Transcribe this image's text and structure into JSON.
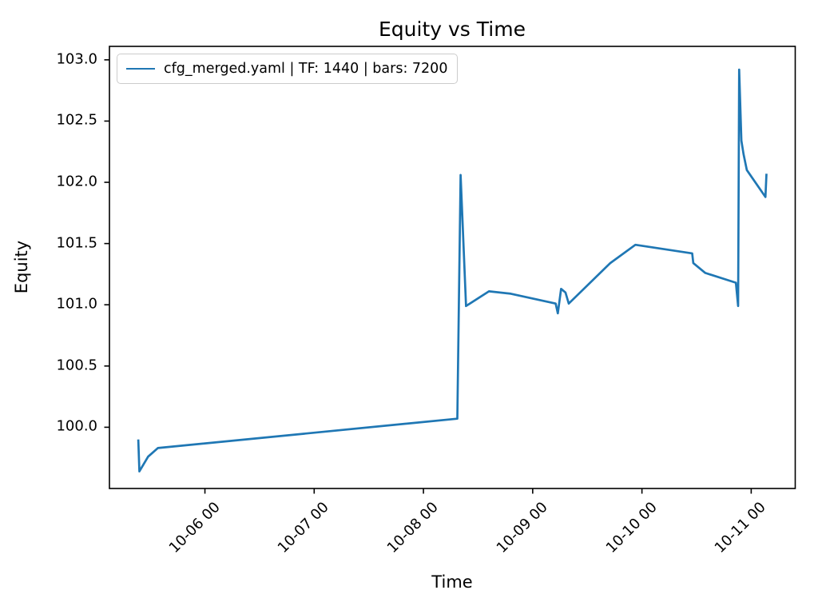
{
  "chart_data": {
    "type": "line",
    "title": "Equity vs Time",
    "xlabel": "Time",
    "ylabel": "Equity",
    "legend": [
      "cfg_merged.yaml | TF: 1440 | bars: 7200"
    ],
    "legend_position": "upper left",
    "line_color": "#1f77b4",
    "axis_color": "#000000",
    "grid": false,
    "x_axis_note": "x values are days relative to the 10-06 00 tick",
    "x_tick_labels": [
      "10-06 00",
      "10-07 00",
      "10-08 00",
      "10-09 00",
      "10-10 00",
      "10-11 00"
    ],
    "x_tick_days": [
      0,
      1,
      2,
      3,
      4,
      5
    ],
    "y_tick_labels": [
      "100.0",
      "100.5",
      "101.0",
      "101.5",
      "102.0",
      "102.5",
      "103.0"
    ],
    "y_tick_values": [
      100.0,
      100.5,
      101.0,
      101.5,
      102.0,
      102.5,
      103.0
    ],
    "xlim_days": [
      -0.874,
      5.403
    ],
    "ylim": [
      99.5,
      103.11
    ],
    "series": [
      {
        "name": "cfg_merged.yaml | TF: 1440 | bars: 7200",
        "points": [
          [
            -0.61,
            99.9
          ],
          [
            -0.6,
            99.64
          ],
          [
            -0.52,
            99.76
          ],
          [
            -0.43,
            99.83
          ],
          [
            2.31,
            100.07
          ],
          [
            2.34,
            102.06
          ],
          [
            2.39,
            100.99
          ],
          [
            2.6,
            101.11
          ],
          [
            2.8,
            101.09
          ],
          [
            3.21,
            101.01
          ],
          [
            3.23,
            100.93
          ],
          [
            3.26,
            101.13
          ],
          [
            3.3,
            101.1
          ],
          [
            3.33,
            101.01
          ],
          [
            3.71,
            101.34
          ],
          [
            3.94,
            101.49
          ],
          [
            4.46,
            101.42
          ],
          [
            4.47,
            101.34
          ],
          [
            4.58,
            101.26
          ],
          [
            4.86,
            101.18
          ],
          [
            4.88,
            100.99
          ],
          [
            4.89,
            102.92
          ],
          [
            4.91,
            102.34
          ],
          [
            4.93,
            102.23
          ],
          [
            4.96,
            102.1
          ],
          [
            5.13,
            101.88
          ],
          [
            5.14,
            102.07
          ]
        ]
      }
    ]
  }
}
